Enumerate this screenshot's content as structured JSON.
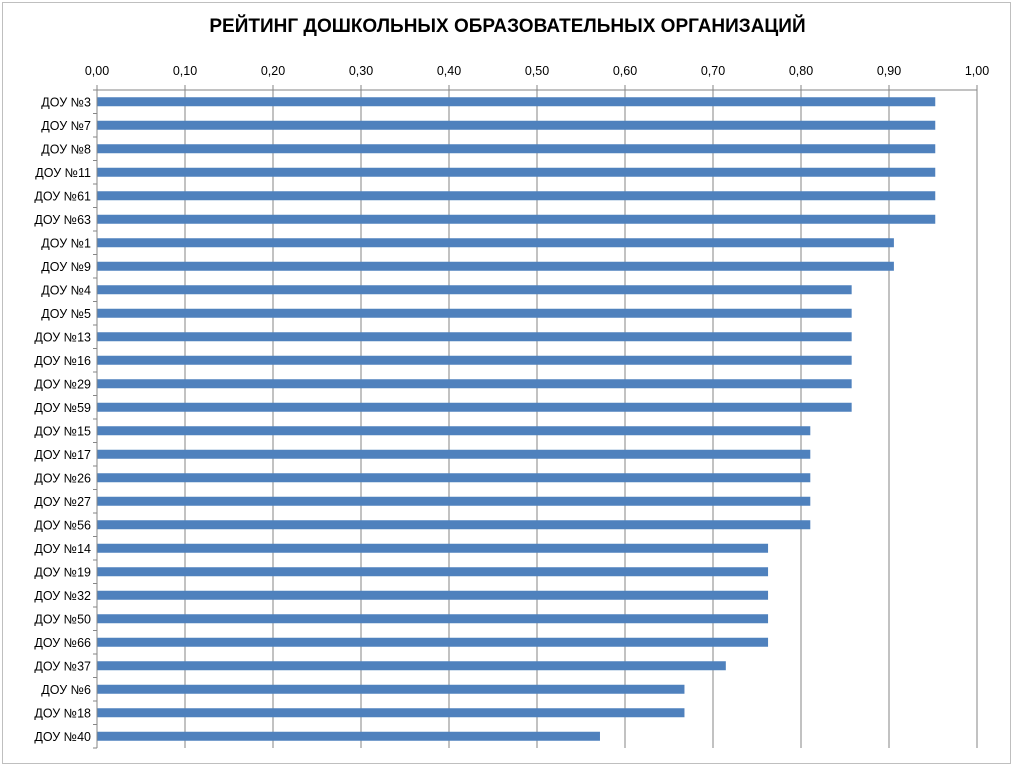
{
  "chart_data": {
    "type": "bar",
    "orientation": "horizontal",
    "title": "РЕЙТИНГ ДОШКОЛЬНЫХ ОБРАЗОВАТЕЛЬНЫХ ОРГАНИЗАЦИЙ",
    "xlabel": "",
    "ylabel": "",
    "xlim": [
      0,
      1
    ],
    "x_ticks": [
      "0,00",
      "0,10",
      "0,20",
      "0,30",
      "0,40",
      "0,50",
      "0,60",
      "0,70",
      "0,80",
      "0,90",
      "1,00"
    ],
    "x_axis_position": "top",
    "grid": true,
    "legend": "none",
    "bar_color": "#4f81bd",
    "categories": [
      "ДОУ №3",
      "ДОУ №7",
      "ДОУ №8",
      "ДОУ №11",
      "ДОУ №61",
      "ДОУ №63",
      "ДОУ №1",
      "ДОУ №9",
      "ДОУ №4",
      "ДОУ №5",
      "ДОУ №13",
      "ДОУ №16",
      "ДОУ №29",
      "ДОУ №59",
      "ДОУ №15",
      "ДОУ №17",
      "ДОУ №26",
      "ДОУ №27",
      "ДОУ №56",
      "ДОУ №14",
      "ДОУ №19",
      "ДОУ №32",
      "ДОУ №50",
      "ДОУ №66",
      "ДОУ №37",
      "ДОУ №6",
      "ДОУ №18",
      "ДОУ №40"
    ],
    "values": [
      0.952,
      0.952,
      0.952,
      0.952,
      0.952,
      0.952,
      0.905,
      0.905,
      0.857,
      0.857,
      0.857,
      0.857,
      0.857,
      0.857,
      0.81,
      0.81,
      0.81,
      0.81,
      0.81,
      0.762,
      0.762,
      0.762,
      0.762,
      0.762,
      0.714,
      0.667,
      0.667,
      0.571
    ]
  }
}
